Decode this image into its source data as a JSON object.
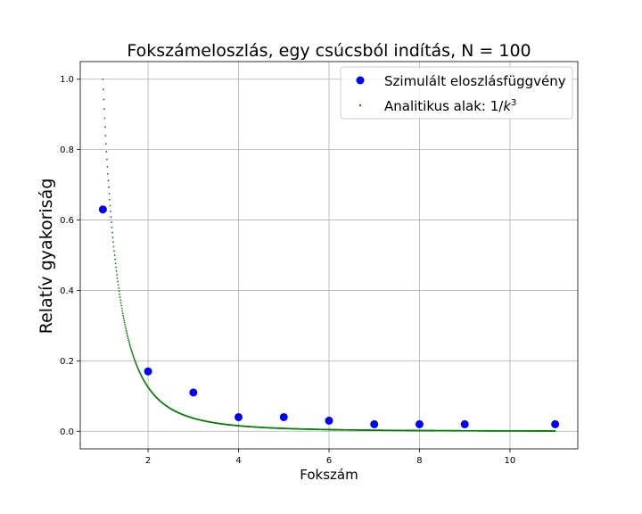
{
  "chart_data": {
    "type": "scatter",
    "title": "Fokszámeloszlás, egy csúcsból indítás, N = 100",
    "xlabel": "Fokszám",
    "ylabel": "Relatív gyakoriság",
    "xlim": [
      0.5,
      11.5
    ],
    "ylim": [
      -0.05,
      1.05
    ],
    "xticks": [
      2,
      4,
      6,
      8,
      10
    ],
    "yticks": [
      0.0,
      0.2,
      0.4,
      0.6,
      0.8,
      1.0
    ],
    "xtick_labels": [
      "2",
      "4",
      "6",
      "8",
      "10"
    ],
    "ytick_labels": [
      "0.0",
      "0.2",
      "0.4",
      "0.6",
      "0.8",
      "1.0"
    ],
    "grid": true,
    "legend_position": "top-right",
    "series": [
      {
        "name": "Szimulált eloszlásfüggvény",
        "kind": "markers",
        "color": "#0000ff",
        "x": [
          1,
          2,
          3,
          4,
          5,
          6,
          7,
          8,
          9,
          10,
          11
        ],
        "y": [
          0.63,
          0.17,
          0.11,
          0.04,
          0.04,
          0.03,
          0.02,
          0.02,
          0.02,
          null,
          0.02
        ]
      },
      {
        "name": "Analitikus alak: 1/k³",
        "legend_base": "Analitikus alak: 1/",
        "legend_var": "k",
        "legend_sup": "3",
        "kind": "dotted-curve",
        "color": "#008000",
        "function": "1/k^3",
        "x_range": [
          1,
          11
        ],
        "x_step": 0.01
      }
    ]
  }
}
